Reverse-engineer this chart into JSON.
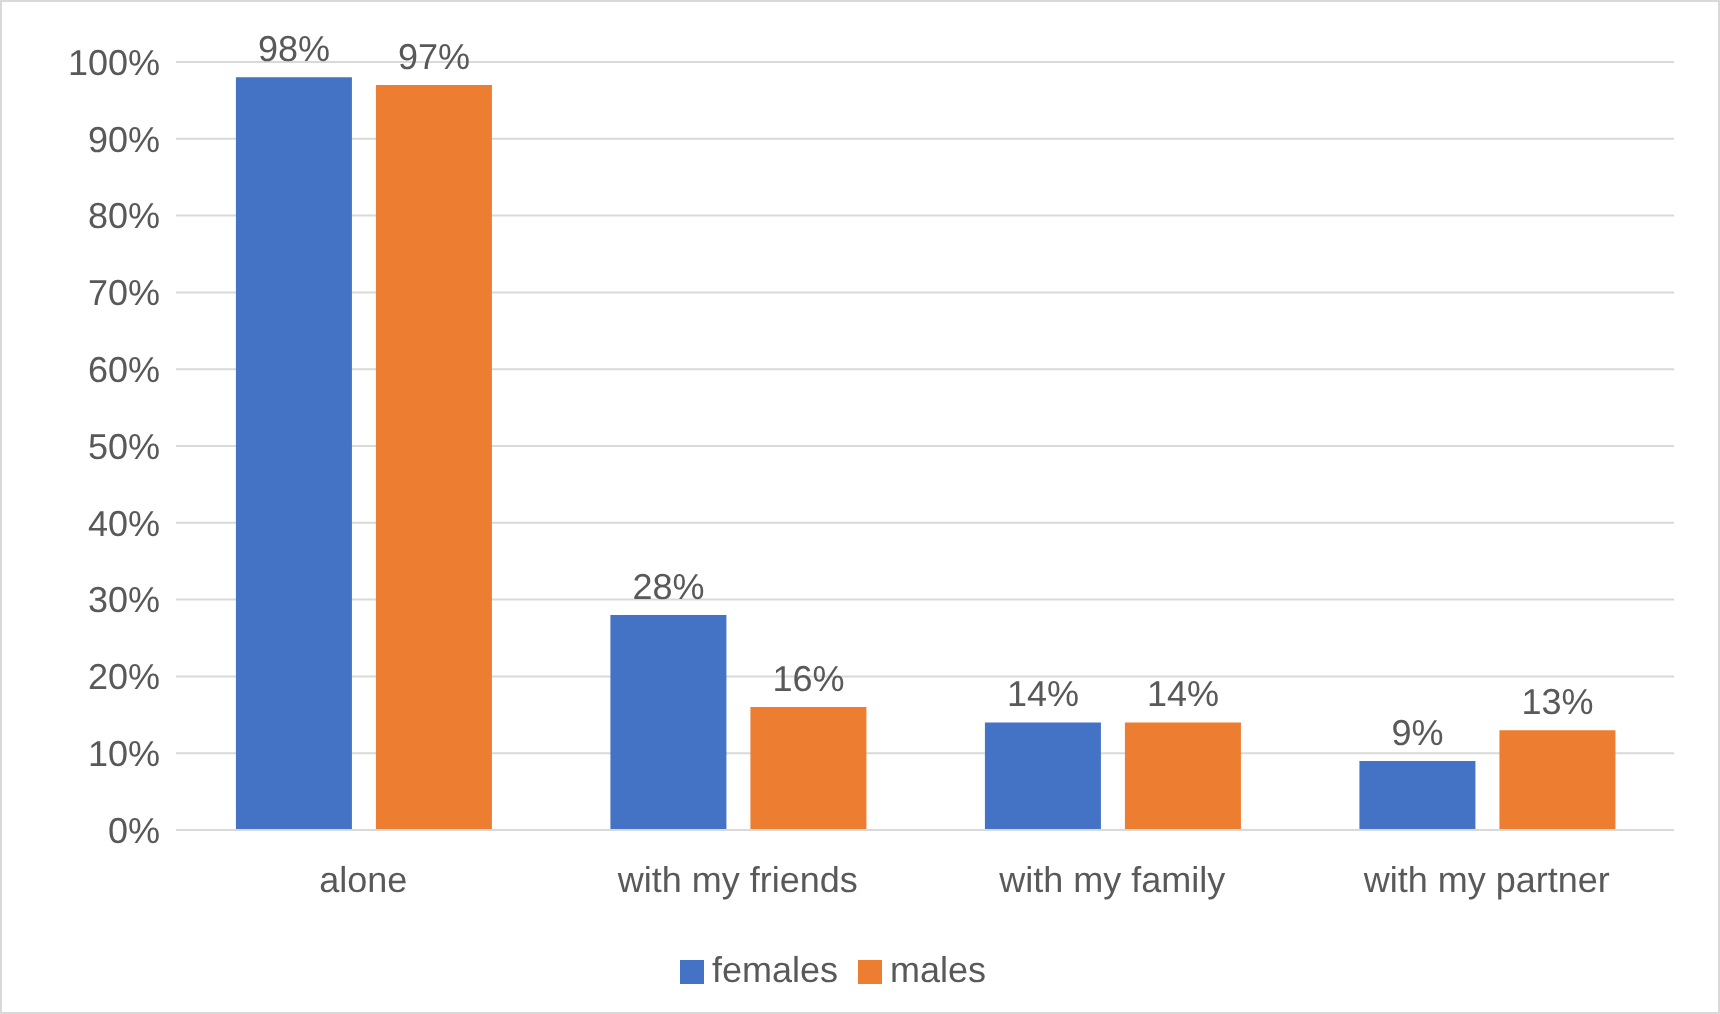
{
  "chart_data": {
    "type": "bar",
    "categories": [
      "alone",
      "with my friends",
      "with my family",
      "with my partner"
    ],
    "series": [
      {
        "name": "females",
        "color": "#4472c4",
        "values": [
          98,
          28,
          14,
          9
        ],
        "value_labels": [
          "98%",
          "28%",
          "14%",
          "9%"
        ]
      },
      {
        "name": "males",
        "color": "#ed7d31",
        "values": [
          97,
          16,
          14,
          13
        ],
        "value_labels": [
          "97%",
          "16%",
          "14%",
          "13%"
        ]
      }
    ],
    "ylim": [
      0,
      100
    ],
    "yticks": [
      {
        "value": 0,
        "label": "0%"
      },
      {
        "value": 10,
        "label": "10%"
      },
      {
        "value": 20,
        "label": "20%"
      },
      {
        "value": 30,
        "label": "30%"
      },
      {
        "value": 40,
        "label": "40%"
      },
      {
        "value": 50,
        "label": "50%"
      },
      {
        "value": 60,
        "label": "60%"
      },
      {
        "value": 70,
        "label": "70%"
      },
      {
        "value": 80,
        "label": "80%"
      },
      {
        "value": 90,
        "label": "90%"
      },
      {
        "value": 100,
        "label": "100%"
      }
    ],
    "grid": "y",
    "legend": "bottom"
  }
}
